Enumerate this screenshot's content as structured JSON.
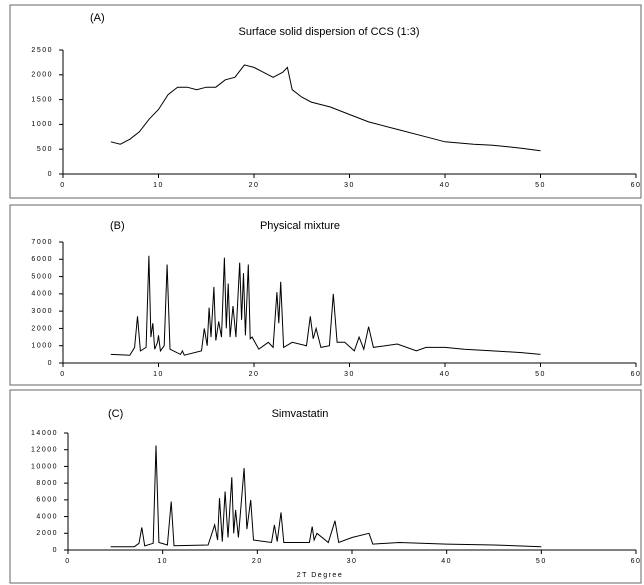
{
  "chart_data": [
    {
      "type": "line",
      "panel_label": "(A)",
      "title": "Surface solid dispersion of CCS (1:3)",
      "xlim": [
        0,
        60
      ],
      "xticks": [
        0,
        10,
        20,
        30,
        40,
        50,
        60
      ],
      "ylim": [
        0,
        2500
      ],
      "yticks": [
        0,
        500,
        1000,
        1500,
        2000,
        2500
      ],
      "color": "#000000",
      "x": [
        5,
        6,
        7,
        8,
        9,
        10,
        11,
        12,
        13,
        14,
        15,
        16,
        17,
        18,
        19,
        20,
        21,
        22,
        23,
        23.5,
        24,
        25,
        26,
        28,
        30,
        32,
        35,
        38,
        40,
        43,
        45,
        48,
        50
      ],
      "values": [
        650,
        600,
        700,
        850,
        1100,
        1300,
        1600,
        1750,
        1750,
        1700,
        1750,
        1750,
        1900,
        1950,
        2200,
        2150,
        2050,
        1950,
        2050,
        2150,
        1700,
        1550,
        1450,
        1350,
        1200,
        1050,
        900,
        750,
        650,
        600,
        580,
        520,
        470
      ]
    },
    {
      "type": "line",
      "panel_label": "(B)",
      "title": "Physical  mixture",
      "xlim": [
        0,
        60
      ],
      "xticks": [
        0,
        10,
        20,
        30,
        40,
        50,
        60
      ],
      "ylim": [
        0,
        7000
      ],
      "yticks": [
        0,
        1000,
        2000,
        3000,
        4000,
        5000,
        6000,
        7000
      ],
      "color": "#000000",
      "x": [
        5,
        7,
        7.5,
        7.8,
        8.1,
        8.7,
        9.0,
        9.2,
        9.4,
        9.6,
        9.9,
        10.0,
        10.2,
        10.6,
        10.9,
        11.2,
        12.3,
        12.5,
        12.7,
        14.5,
        14.8,
        15.1,
        15.3,
        15.5,
        15.8,
        16.0,
        16.3,
        16.6,
        16.9,
        17.1,
        17.3,
        17.5,
        17.8,
        18.1,
        18.5,
        18.7,
        18.9,
        19.1,
        19.4,
        19.6,
        19.8,
        20.5,
        21.5,
        22.0,
        22.4,
        22.6,
        22.8,
        23.1,
        24,
        25.5,
        25.9,
        26.2,
        26.5,
        27,
        27.9,
        28.3,
        28.7,
        29.5,
        30.5,
        31,
        31.5,
        32,
        32.5,
        35,
        37,
        38,
        40,
        42,
        45,
        48,
        50
      ],
      "values": [
        500,
        450,
        900,
        2700,
        700,
        900,
        6200,
        1500,
        2300,
        800,
        1200,
        1600,
        700,
        1000,
        5700,
        800,
        500,
        700,
        450,
        700,
        2000,
        1000,
        3200,
        1500,
        4400,
        1300,
        2400,
        1500,
        6100,
        2000,
        4600,
        1500,
        3300,
        1500,
        5800,
        2500,
        5200,
        1600,
        5700,
        1400,
        1500,
        800,
        1200,
        900,
        4100,
        2300,
        4700,
        900,
        1200,
        1000,
        2700,
        1400,
        2000,
        900,
        1000,
        4000,
        1200,
        1200,
        700,
        1500,
        800,
        2100,
        900,
        1100,
        700,
        900,
        900,
        800,
        700,
        600,
        500
      ]
    },
    {
      "type": "line",
      "panel_label": "(C)",
      "title": "Simvastatin",
      "x_label": "2T Degree",
      "xlim": [
        0,
        60
      ],
      "xticks": [
        0,
        10,
        20,
        30,
        40,
        50,
        60
      ],
      "ylim": [
        0,
        14000
      ],
      "yticks": [
        0,
        2000,
        4000,
        6000,
        8000,
        10000,
        12000,
        14000
      ],
      "color": "#000000",
      "x": [
        4.5,
        7,
        7.5,
        7.8,
        8.1,
        9.0,
        9.3,
        9.6,
        10.5,
        10.9,
        11.2,
        14.8,
        15.5,
        15.8,
        16.0,
        16.3,
        16.6,
        16.9,
        17.3,
        17.5,
        17.7,
        18.0,
        18.6,
        18.9,
        19.3,
        19.6,
        21.5,
        21.8,
        22.1,
        22.5,
        22.8,
        25.5,
        25.8,
        26.0,
        26.3,
        27.5,
        28.2,
        28.6,
        30,
        31.8,
        32.2,
        35,
        40,
        45,
        50
      ],
      "values": [
        400,
        400,
        800,
        2700,
        500,
        800,
        12500,
        900,
        600,
        5800,
        500,
        600,
        3000,
        1200,
        6200,
        1000,
        7000,
        1500,
        8700,
        2000,
        4800,
        1500,
        9800,
        2500,
        6000,
        1200,
        900,
        3000,
        1000,
        4500,
        900,
        900,
        2800,
        1200,
        2000,
        900,
        3500,
        900,
        1500,
        2000,
        700,
        900,
        700,
        600,
        400
      ]
    }
  ]
}
